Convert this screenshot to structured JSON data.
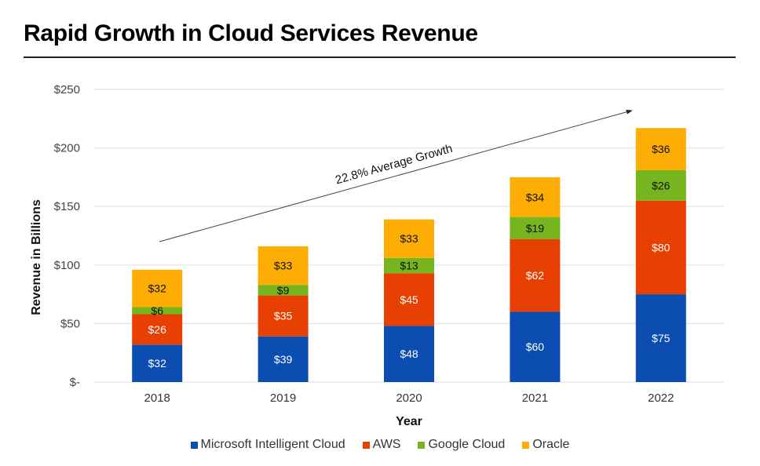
{
  "header": {
    "title": "Rapid Growth in Cloud Services Revenue"
  },
  "chart_data": {
    "type": "bar",
    "stacked": true,
    "title": "Rapid Growth in Cloud Services Revenue",
    "xlabel": "Year",
    "ylabel": "Revenue in Billions",
    "categories": [
      "2018",
      "2019",
      "2020",
      "2021",
      "2022"
    ],
    "ylim": [
      0,
      250
    ],
    "yticks": [
      0,
      50,
      100,
      150,
      200,
      250
    ],
    "ytick_labels": [
      "$-",
      "$50",
      "$100",
      "$150",
      "$200",
      "$250"
    ],
    "grid": true,
    "legend_position": "bottom",
    "series": [
      {
        "name": "Microsoft Intelligent Cloud",
        "color": "#0b4db0",
        "label_color": "#ffffff",
        "values": [
          32,
          39,
          48,
          60,
          75
        ],
        "labels": [
          "$32",
          "$39",
          "$48",
          "$60",
          "$75"
        ]
      },
      {
        "name": "AWS",
        "color": "#e84003",
        "label_color": "#ffffff",
        "values": [
          26,
          35,
          45,
          62,
          80
        ],
        "labels": [
          "$26",
          "$35",
          "$45",
          "$62",
          "$80"
        ]
      },
      {
        "name": "Google Cloud",
        "color": "#76b51e",
        "label_color": "#111111",
        "values": [
          6,
          9,
          13,
          19,
          26
        ],
        "labels": [
          "$6",
          "$9",
          "$13",
          "$19",
          "$26"
        ]
      },
      {
        "name": "Oracle",
        "color": "#fdad04",
        "label_color": "#111111",
        "values": [
          32,
          33,
          33,
          34,
          36
        ],
        "labels": [
          "$32",
          "$33",
          "$33",
          "$34",
          "$36"
        ]
      }
    ],
    "annotations": [
      {
        "type": "arrow",
        "text": "22.8% Average Growth",
        "from": {
          "x": "2018",
          "y": 120
        },
        "to": {
          "x": "2022",
          "y": 232
        }
      }
    ]
  }
}
